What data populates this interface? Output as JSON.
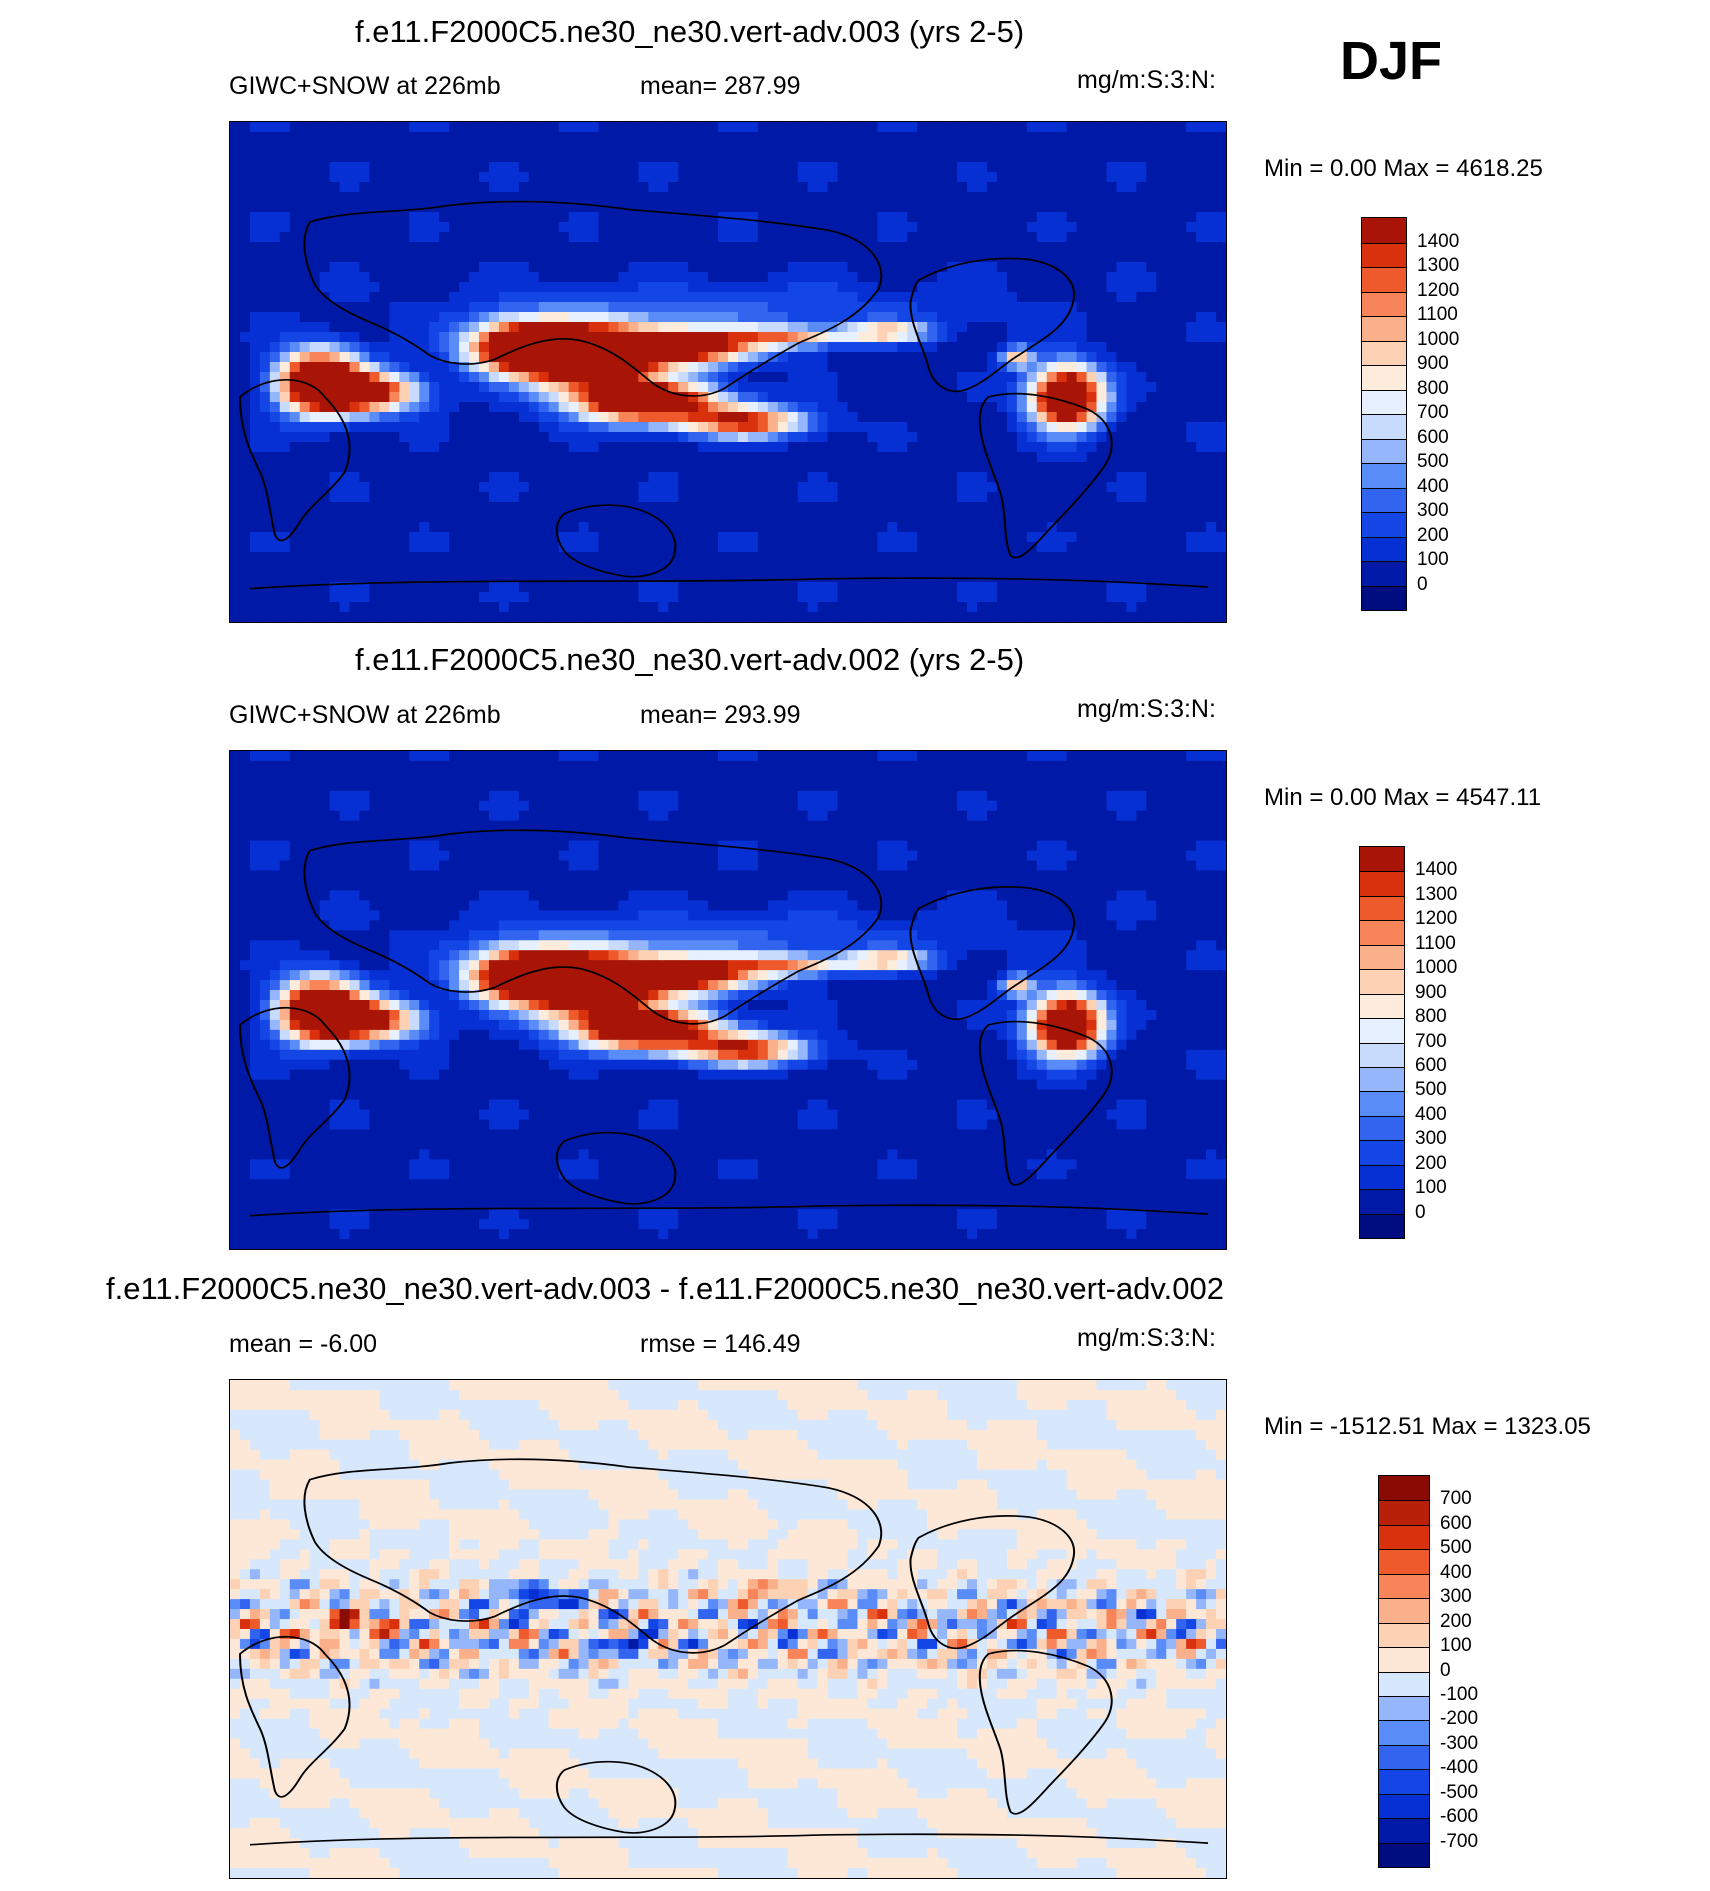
{
  "season": "DJF",
  "panels": [
    {
      "title": "f.e11.F2000C5.ne30_ne30.vert-adv.003 (yrs 2-5)",
      "left": "GIWC+SNOW at 226mb",
      "center": "mean= 287.99",
      "right": "mg/m:S:3:N:",
      "minmax": "Min =   0.00 Max = 4618.25",
      "levels": [
        "0",
        "100",
        "200",
        "300",
        "400",
        "500",
        "600",
        "700",
        "800",
        "900",
        "1000",
        "1100",
        "1200",
        "1300",
        "1400"
      ],
      "colors": [
        "#000d80",
        "#0019a6",
        "#0630d3",
        "#1446e6",
        "#3264f0",
        "#5a8cf8",
        "#96b6fb",
        "#c8dbfd",
        "#e6f0fe",
        "#fdebdc",
        "#fcd1b4",
        "#fab08a",
        "#f8845a",
        "#ef5a2c",
        "#d9300d",
        "#a81507"
      ],
      "field": "total"
    },
    {
      "title": "f.e11.F2000C5.ne30_ne30.vert-adv.002 (yrs 2-5)",
      "left": "GIWC+SNOW at 226mb",
      "center": "mean= 293.99",
      "right": "mg/m:S:3:N:",
      "minmax": "Min =   0.00 Max = 4547.11",
      "levels": [
        "0",
        "100",
        "200",
        "300",
        "400",
        "500",
        "600",
        "700",
        "800",
        "900",
        "1000",
        "1100",
        "1200",
        "1300",
        "1400"
      ],
      "colors": [
        "#000d80",
        "#0019a6",
        "#0630d3",
        "#1446e6",
        "#3264f0",
        "#5a8cf8",
        "#96b6fb",
        "#c8dbfd",
        "#e6f0fe",
        "#fdebdc",
        "#fcd1b4",
        "#fab08a",
        "#f8845a",
        "#ef5a2c",
        "#d9300d",
        "#a81507"
      ],
      "field": "total"
    },
    {
      "title": "f.e11.F2000C5.ne30_ne30.vert-adv.003 - f.e11.F2000C5.ne30_ne30.vert-adv.002",
      "left": "mean =  -6.00",
      "center": "rmse = 146.49",
      "right": "mg/m:S:3:N:",
      "minmax": "Min = -1512.51 Max = 1323.05",
      "levels": [
        "-700",
        "-600",
        "-500",
        "-400",
        "-300",
        "-200",
        "-100",
        "0",
        "100",
        "200",
        "300",
        "400",
        "500",
        "600",
        "700"
      ],
      "colors": [
        "#000d80",
        "#0019a6",
        "#0630d3",
        "#1446e6",
        "#3264f0",
        "#5a8cf8",
        "#96b6fb",
        "#d7e8fc",
        "#fde8d8",
        "#fcd1b4",
        "#fab08a",
        "#f8845a",
        "#ef5a2c",
        "#d9300d",
        "#b8200a",
        "#8a0a04"
      ],
      "field": "diff"
    }
  ]
}
